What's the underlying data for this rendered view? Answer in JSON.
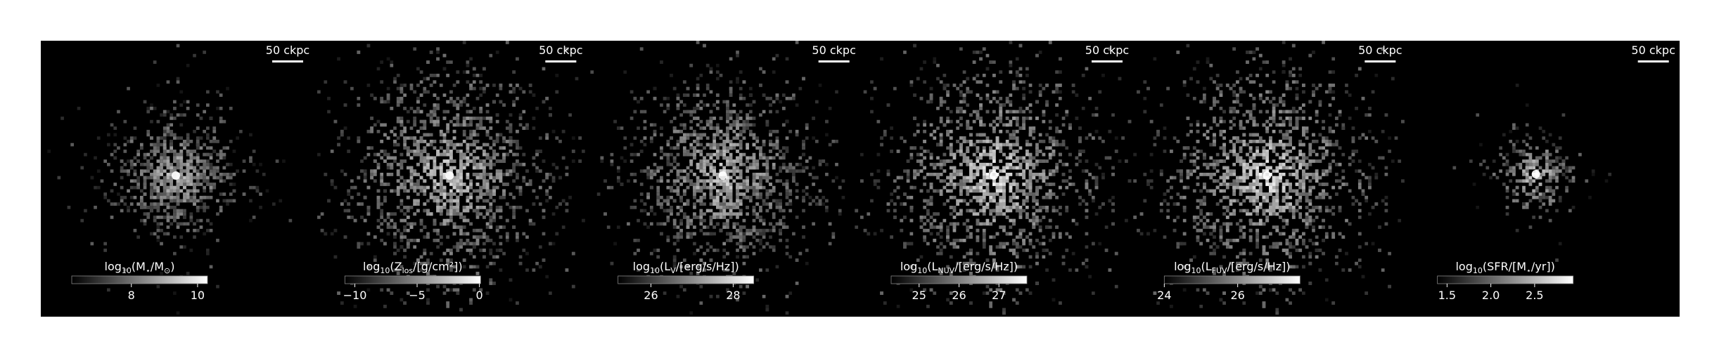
{
  "chart_data": [
    {
      "type": "heatmap",
      "scale_label": "50 ckpc",
      "colorbar": {
        "label": [
          "log",
          "10",
          "(M",
          "⋆",
          "/M",
          "⊙",
          ")"
        ],
        "lim": [
          6.2,
          10.3
        ],
        "ticks": [
          8,
          10
        ]
      }
    },
    {
      "type": "heatmap",
      "scale_label": "50 ckpc",
      "colorbar": {
        "label": [
          "log",
          "10",
          "(Z",
          "los",
          "/[g/cm²])"
        ],
        "lim": [
          -10.8,
          0.1
        ],
        "ticks": [
          {
            "value": -10,
            "label": "−10"
          },
          {
            "value": -5,
            "label": "−5"
          },
          0
        ]
      }
    },
    {
      "type": "heatmap",
      "scale_label": "50 ckpc",
      "colorbar": {
        "label": [
          "log",
          "10",
          "(L",
          "V",
          "/[erg/s/Hz])"
        ],
        "lim": [
          25.2,
          28.5
        ],
        "ticks": [
          26,
          28
        ]
      }
    },
    {
      "type": "heatmap",
      "scale_label": "50 ckpc",
      "colorbar": {
        "label": [
          "log",
          "10",
          "(L",
          "NUV",
          "/[erg/s/Hz])"
        ],
        "lim": [
          24.3,
          27.7
        ],
        "ticks": [
          25,
          26,
          27
        ]
      }
    },
    {
      "type": "heatmap",
      "scale_label": "50 ckpc",
      "colorbar": {
        "label": [
          "log",
          "10",
          "(L",
          "FUV",
          "/[erg/s/Hz])"
        ],
        "lim": [
          24.0,
          27.7
        ],
        "ticks": [
          24,
          26
        ]
      }
    },
    {
      "type": "heatmap",
      "scale_label": "50 ckpc",
      "colorbar": {
        "label": [
          "log",
          "10",
          "(SFR/[M",
          "⋆",
          "/yr])"
        ],
        "lim": [
          1.39,
          2.94
        ],
        "ticks": [
          1.5,
          {
            "value": 2,
            "label": "2.0"
          },
          2.5
        ]
      }
    }
  ]
}
